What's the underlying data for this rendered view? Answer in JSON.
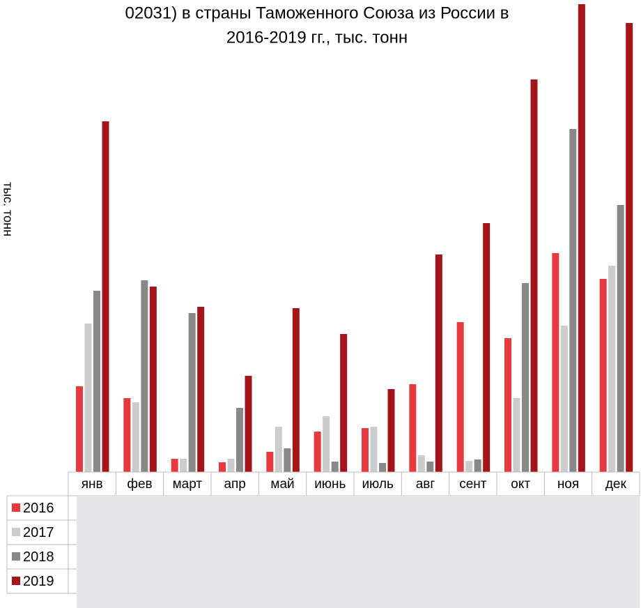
{
  "chart_data": {
    "type": "bar",
    "title_lines": [
      "02031) в страны Таможенного Союза из России в",
      "2016-2019 гг., тыс. тонн"
    ],
    "y_axis_label": "тыс. тонн",
    "categories": [
      "янв",
      "фев",
      "март",
      "апр",
      "май",
      "июнь",
      "июль",
      "авг",
      "сент",
      "окт",
      "ноя",
      "дек"
    ],
    "series": [
      {
        "name": "2016",
        "color": "#e8393f",
        "values": [
          123,
          106,
          19,
          14,
          29,
          58,
          63,
          126,
          215,
          192,
          314,
          277
        ]
      },
      {
        "name": "2017",
        "color": "#cccccc",
        "values": [
          213,
          100,
          19,
          19,
          65,
          80,
          65,
          24,
          16,
          106,
          210,
          296
        ]
      },
      {
        "name": "2018",
        "color": "#888888",
        "values": [
          260,
          275,
          228,
          92,
          34,
          15,
          13,
          15,
          18,
          271,
          492,
          383
        ]
      },
      {
        "name": "2019",
        "color": "#a51419",
        "values": [
          503,
          266,
          237,
          138,
          235,
          198,
          119,
          312,
          357,
          563,
          671,
          644
        ]
      }
    ],
    "ylim": [
      0,
      680
    ]
  }
}
